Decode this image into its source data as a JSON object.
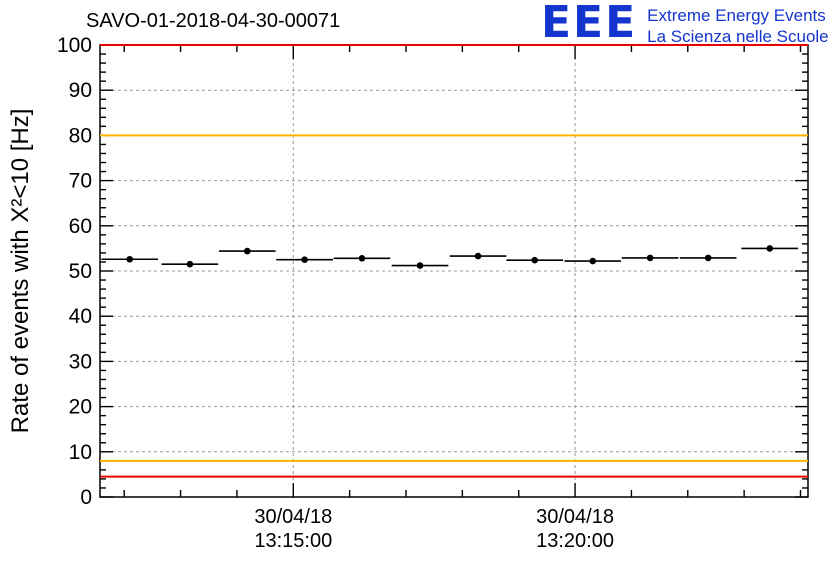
{
  "header": {
    "logo_mark": "EEE",
    "logo_line1": "Extreme Energy Events",
    "logo_line2": "La Scienza nelle Scuole",
    "logo_color": "#1535cf"
  },
  "chart_data": {
    "type": "scatter",
    "title": "SAVO-01-2018-04-30-00071",
    "ylabel": "Rate of events with X²<10 [Hz]",
    "xlabel": "",
    "ylim": [
      0,
      100
    ],
    "y_major_step": 10,
    "y_minor_step": 2,
    "grid": true,
    "grid_color": "#999999",
    "x_tick_labels": [
      {
        "pos": 0.273,
        "line1": "30/04/18",
        "line2": "13:15:00"
      },
      {
        "pos": 0.671,
        "line1": "30/04/18",
        "line2": "13:20:00"
      }
    ],
    "x_minor_divisions": 5,
    "threshold_lines": [
      {
        "y": 100,
        "color": "#e60000"
      },
      {
        "y": 80,
        "color": "#ffb300"
      },
      {
        "y": 8,
        "color": "#ffb300"
      },
      {
        "y": 4.5,
        "color": "#e60000"
      }
    ],
    "series": [
      {
        "name": "rate",
        "marker": "circle",
        "color": "#000000",
        "points": [
          {
            "x": 0.042,
            "y": 52.6,
            "xerr": 0.04,
            "yerr": 0.5
          },
          {
            "x": 0.127,
            "y": 51.5,
            "xerr": 0.04,
            "yerr": 0.5
          },
          {
            "x": 0.208,
            "y": 54.4,
            "xerr": 0.04,
            "yerr": 0.5
          },
          {
            "x": 0.289,
            "y": 52.5,
            "xerr": 0.04,
            "yerr": 0.5
          },
          {
            "x": 0.37,
            "y": 52.8,
            "xerr": 0.04,
            "yerr": 0.5
          },
          {
            "x": 0.452,
            "y": 51.2,
            "xerr": 0.04,
            "yerr": 0.5
          },
          {
            "x": 0.534,
            "y": 53.3,
            "xerr": 0.04,
            "yerr": 0.5
          },
          {
            "x": 0.614,
            "y": 52.4,
            "xerr": 0.04,
            "yerr": 0.5
          },
          {
            "x": 0.696,
            "y": 52.2,
            "xerr": 0.04,
            "yerr": 0.5
          },
          {
            "x": 0.777,
            "y": 52.9,
            "xerr": 0.04,
            "yerr": 0.5
          },
          {
            "x": 0.859,
            "y": 52.9,
            "xerr": 0.04,
            "yerr": 0.5
          },
          {
            "x": 0.946,
            "y": 55.0,
            "xerr": 0.04,
            "yerr": 0.5
          }
        ]
      }
    ]
  }
}
